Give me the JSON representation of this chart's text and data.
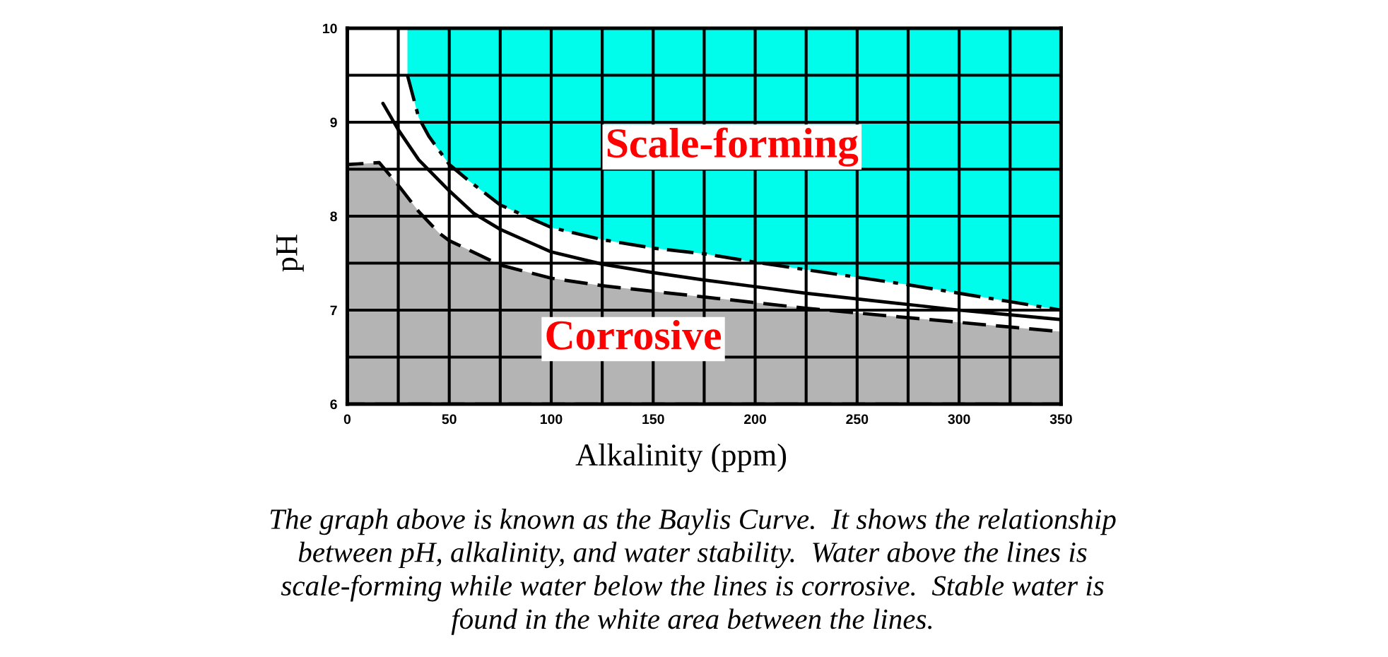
{
  "chart_data": {
    "type": "line",
    "xlabel": "Alkalinity (ppm)",
    "ylabel": "pH",
    "xlim": [
      0,
      350
    ],
    "ylim": [
      6,
      10
    ],
    "xticks": [
      0,
      {
        "value": 25,
        "label": null
      },
      50,
      {
        "value": 75,
        "label": null
      },
      100,
      {
        "value": 125,
        "label": null
      },
      150,
      {
        "value": 175,
        "label": null
      },
      200,
      {
        "value": 225,
        "label": null
      },
      250,
      {
        "value": 275,
        "label": null
      },
      300,
      {
        "value": 325,
        "label": null
      },
      350
    ],
    "yticks": [
      6,
      {
        "value": 6.5,
        "label": null
      },
      7,
      {
        "value": 7.5,
        "label": null
      },
      8,
      {
        "value": 8.5,
        "label": null
      },
      9,
      {
        "value": 9.5,
        "label": null
      },
      10
    ],
    "grid": true,
    "series": [
      {
        "color": "#000000",
        "line_style": "dashdot",
        "x": [
          29.5,
          35,
          40,
          50,
          60,
          75,
          100,
          125,
          150,
          175,
          200,
          225,
          250,
          275,
          300,
          325,
          350
        ],
        "values": [
          9.5,
          9.05,
          8.85,
          8.55,
          8.37,
          8.12,
          7.88,
          7.75,
          7.66,
          7.6,
          7.51,
          7.43,
          7.35,
          7.27,
          7.18,
          7.09,
          7.0
        ],
        "lower": [
          9.5,
          9.05,
          8.85,
          8.55,
          8.37,
          8.12,
          7.88,
          7.75,
          7.66,
          7.6,
          7.51,
          7.43,
          7.35,
          7.27,
          7.18,
          7.09,
          7.0
        ],
        "upper": [
          10,
          10,
          10,
          10,
          10,
          10,
          10,
          10,
          10,
          10,
          10,
          10,
          10,
          10,
          10,
          10,
          10
        ]
      },
      {
        "type": "area",
        "color": "#b4b4b4",
        "line_style": "dashed",
        "x": [
          0,
          15.7,
          25,
          35,
          45,
          50,
          75,
          100,
          125,
          150,
          175,
          200,
          225,
          250,
          275,
          300,
          325,
          350
        ],
        "values": [
          8.55,
          8.57,
          8.33,
          8.05,
          7.82,
          7.74,
          7.48,
          7.34,
          7.26,
          7.2,
          7.14,
          7.08,
          7.02,
          6.97,
          6.92,
          6.87,
          6.82,
          6.77
        ]
      },
      {
        "color": "#000000",
        "line_style": "solid",
        "x": [
          17.5,
          25,
          35,
          50,
          62,
          75,
          100,
          125,
          150,
          175,
          200,
          225,
          250,
          275,
          300,
          325,
          350
        ],
        "values": [
          9.2,
          8.92,
          8.6,
          8.27,
          8.03,
          7.86,
          7.62,
          7.49,
          7.4,
          7.32,
          7.25,
          7.18,
          7.12,
          7.06,
          7.0,
          6.95,
          6.9
        ]
      }
    ],
    "annotations": [
      "Scale-forming",
      "Corrosive",
      "The graph above is known as the Baylis Curve.  It shows the relationship\nbetween pH, alkalinity, and water stability.  Water above the lines is\nscale-forming while water below the lines is corrosive.  Stable water is\nfound in the white area between the lines."
    ]
  }
}
